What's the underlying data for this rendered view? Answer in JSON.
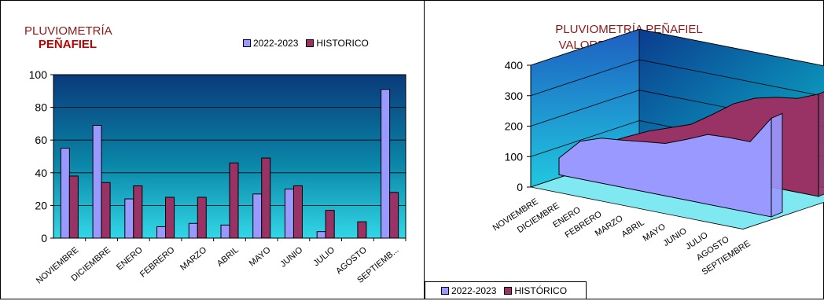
{
  "colors": {
    "series_a": "#9999FF",
    "series_b": "#993366",
    "title": "#8B1A1A"
  },
  "chart_data": [
    {
      "type": "bar",
      "title_line1": "PLUVIOMETRÍA",
      "title_line2": "PEÑAFIEL",
      "categories": [
        "NOVIEMBRE",
        "DICIEMBRE",
        "ENERO",
        "FEBRERO",
        "MARZO",
        "ABRIL",
        "MAYO",
        "JUNIO",
        "JULIO",
        "AGOSTO",
        "SEPTIEMB..."
      ],
      "series": [
        {
          "name": "2022-2023",
          "values": [
            55,
            69,
            24,
            7,
            9,
            8,
            27,
            30,
            4,
            0,
            91
          ]
        },
        {
          "name": "HISTORICO",
          "values": [
            38,
            34,
            32,
            25,
            25,
            46,
            49,
            32,
            17,
            10,
            28
          ]
        }
      ],
      "ylim": [
        0,
        100
      ],
      "yticks": [
        "0",
        "20",
        "40",
        "60",
        "80",
        "100"
      ],
      "legend": "top-right",
      "grid": true
    },
    {
      "type": "area",
      "title_line1": "PLUVIOMETRÍA PEÑAFIEL",
      "title_line2": "VALORES ACUMULADOS",
      "categories": [
        "NOVIEMBRE",
        "DICIEMBRE",
        "ENERO",
        "FEBRERO",
        "MARZO",
        "ABRIL",
        "MAYO",
        "JUNIO",
        "JULIO",
        "AGOSTO",
        "SEPTIEMBRE"
      ],
      "series": [
        {
          "name": "2022-2023",
          "values": [
            55,
            124,
            148,
            155,
            164,
            172,
            199,
            229,
            233,
            233,
            324
          ]
        },
        {
          "name": "HISTÓRICO",
          "values": [
            38,
            72,
            104,
            129,
            154,
            200,
            249,
            281,
            298,
            308,
            336
          ]
        }
      ],
      "ylim": [
        0,
        400
      ],
      "yticks": [
        "0",
        "100",
        "200",
        "300",
        "400"
      ],
      "legend": "bottom-left",
      "grid": true
    }
  ]
}
